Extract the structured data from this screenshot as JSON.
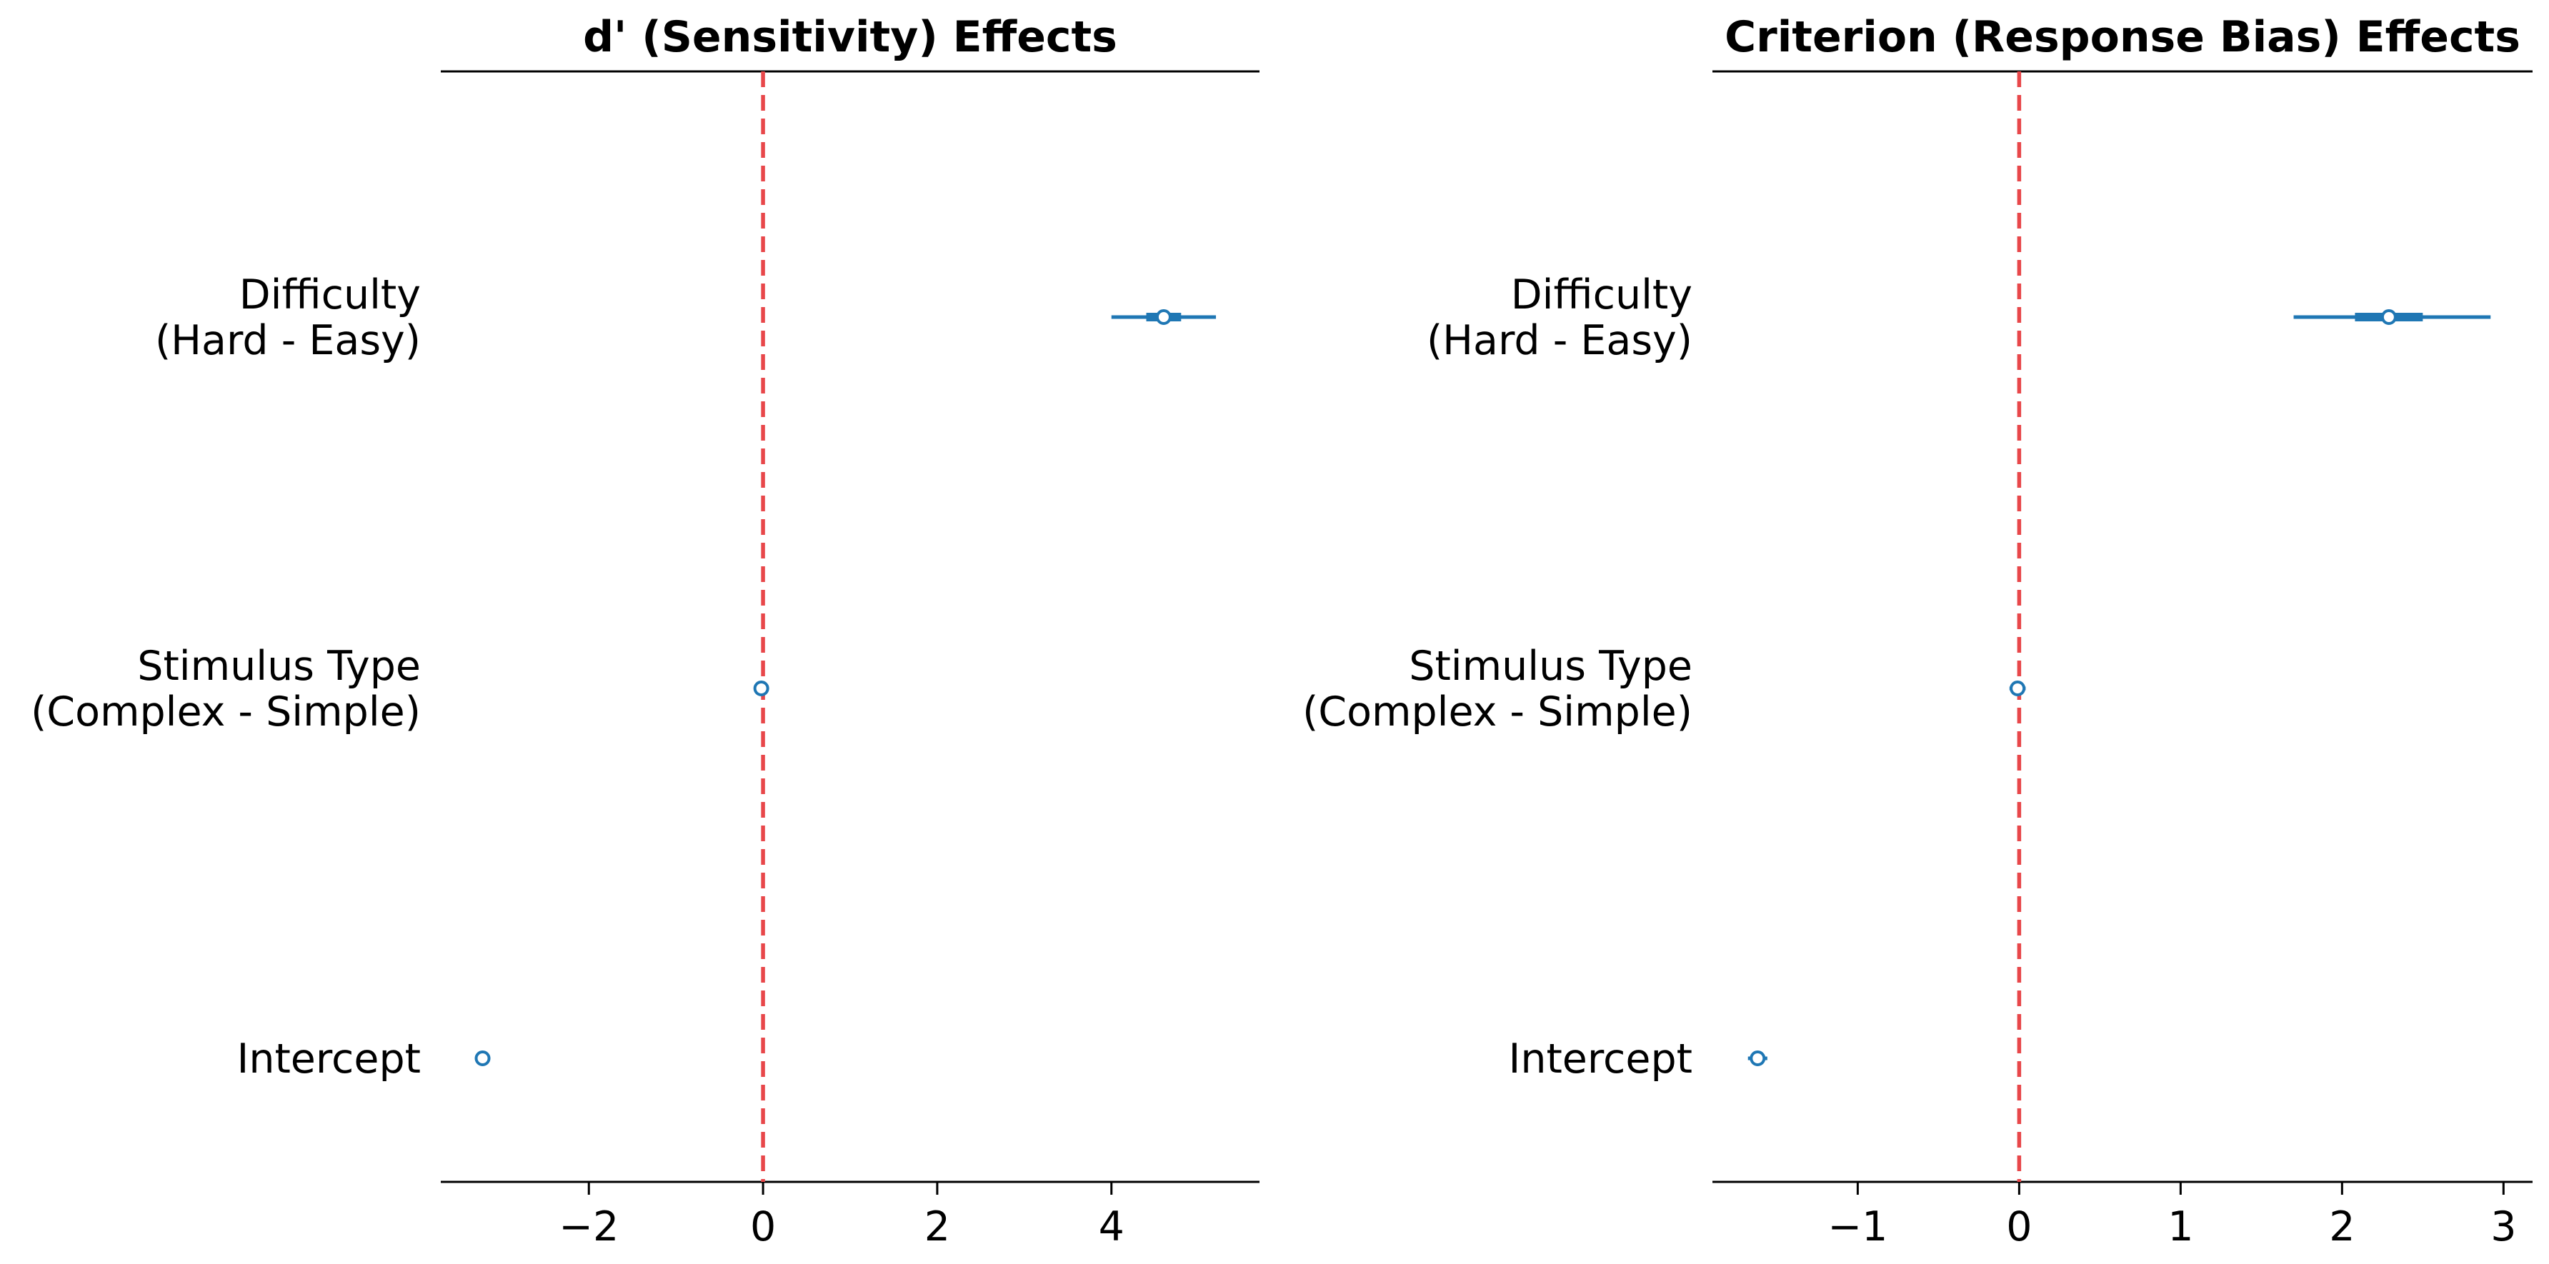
{
  "chart_data": [
    {
      "type": "forest",
      "title": "d' (Sensitivity) Effects",
      "categories": [
        [
          "Difficulty",
          "(Hard - Easy)"
        ],
        [
          "Stimulus Type",
          "(Complex - Simple)"
        ],
        [
          "Intercept"
        ]
      ],
      "xlim": [
        -3.7,
        5.7
      ],
      "xticks": [
        -2,
        0,
        2,
        4
      ],
      "xtick_labels": [
        "−2",
        "0",
        "2",
        "4"
      ],
      "reference_line": 0,
      "grid": false,
      "series": [
        {
          "estimates": [
            4.6,
            -0.02,
            -3.22
          ],
          "hdi_low": [
            4.0,
            -0.08,
            -3.28
          ],
          "hdi_high": [
            5.2,
            0.04,
            -3.16
          ],
          "iqr_low": [
            4.4,
            -0.04,
            -3.24
          ],
          "iqr_high": [
            4.8,
            0.0,
            -3.2
          ]
        }
      ]
    },
    {
      "type": "forest",
      "title": "Criterion (Response Bias) Effects",
      "categories": [
        [
          "Difficulty",
          "(Hard - Easy)"
        ],
        [
          "Stimulus Type",
          "(Complex - Simple)"
        ],
        [
          "Intercept"
        ]
      ],
      "xlim": [
        -1.9,
        3.18
      ],
      "xticks": [
        -1,
        0,
        1,
        2,
        3
      ],
      "xtick_labels": [
        "−1",
        "0",
        "1",
        "2",
        "3"
      ],
      "reference_line": 0,
      "grid": false,
      "series": [
        {
          "estimates": [
            2.29,
            -0.01,
            -1.62
          ],
          "hdi_low": [
            1.7,
            -0.06,
            -1.68
          ],
          "hdi_high": [
            2.92,
            0.04,
            -1.56
          ],
          "iqr_low": [
            2.08,
            -0.03,
            -1.65
          ],
          "iqr_high": [
            2.5,
            0.01,
            -1.59
          ]
        }
      ]
    }
  ],
  "colors": {
    "series": "#1f77b4",
    "reference_line": "#e8474a",
    "axes": "#000000",
    "marker_fill": "#ffffff"
  }
}
